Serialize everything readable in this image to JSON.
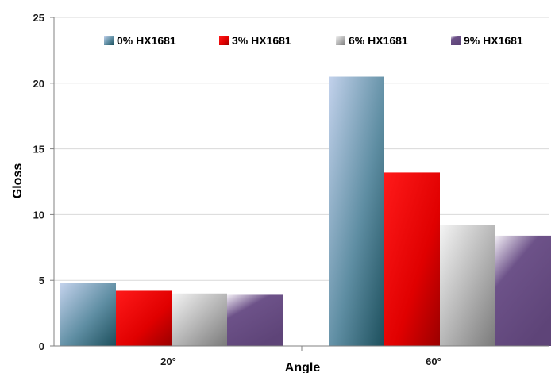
{
  "chart_data": {
    "type": "bar",
    "title": "",
    "xlabel": "Angle",
    "ylabel": "Gloss",
    "categories": [
      "20°",
      "60°"
    ],
    "ylim": [
      0,
      25
    ],
    "yticks": [
      "0",
      "5",
      "10",
      "15",
      "20",
      "25"
    ],
    "grid": "horizontal",
    "legend": "top",
    "series": [
      {
        "name": "0% HX1681",
        "values": [
          4.8,
          20.5
        ],
        "color": "#5d8aa8"
      },
      {
        "name": "3% HX1681",
        "values": [
          4.2,
          13.2
        ],
        "color": "#e00000"
      },
      {
        "name": "6% HX1681",
        "values": [
          4.0,
          9.2
        ],
        "color": "#b0b0b0"
      },
      {
        "name": "9% HX1681",
        "values": [
          3.9,
          8.4
        ],
        "color": "#6a4f86"
      }
    ]
  }
}
